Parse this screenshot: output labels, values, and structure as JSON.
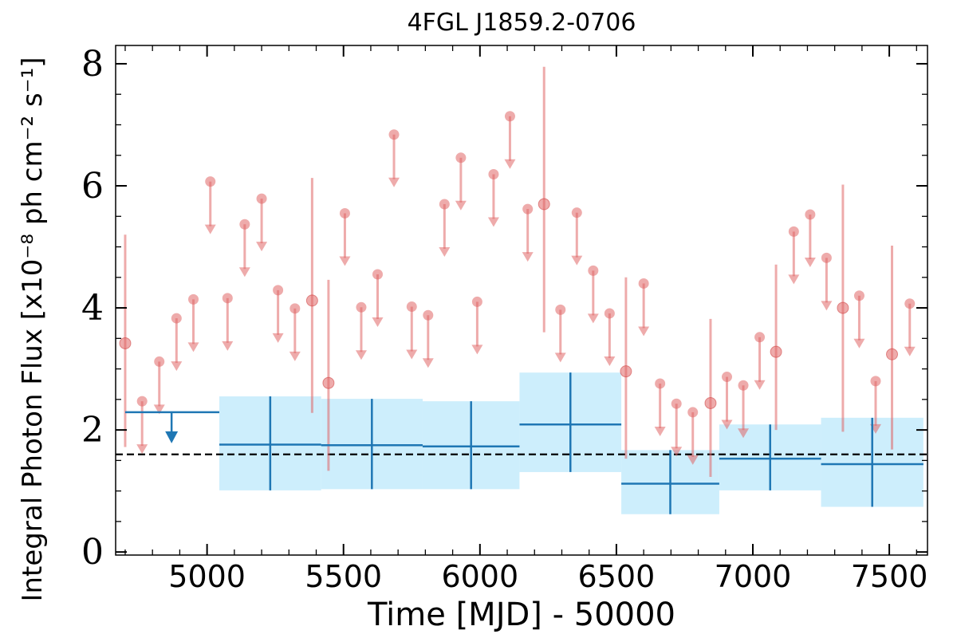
{
  "chart_data": {
    "type": "scatter",
    "title": "4FGL J1859.2-0706",
    "xlabel": "Time [MJD] - 50000",
    "ylabel": "Integral Photon Flux [x10⁻⁸ ph cm⁻² s⁻¹]",
    "xlim": [
      4665,
      7640
    ],
    "ylim": [
      -0.05,
      8.3
    ],
    "xticks": [
      5000,
      5500,
      6000,
      6500,
      7000,
      7500
    ],
    "xtick_labels": [
      "5000",
      "5500",
      "6000",
      "6500",
      "7000",
      "7500"
    ],
    "yticks": [
      0,
      2,
      4,
      6,
      8
    ],
    "ytick_labels": [
      "0",
      "2",
      "4",
      "6",
      "8"
    ],
    "grid": false,
    "reference_line": {
      "y": 1.6,
      "style": "dashed",
      "color": "#000000"
    },
    "colors": {
      "fine_bins": "#e06666",
      "coarse_bins": "#1f77b4",
      "coarse_band": "#cdeefc"
    },
    "series": [
      {
        "kind": "fine_bin_detections",
        "points": [
          {
            "x": 4700,
            "y": 3.42,
            "ylo": 1.72,
            "yhi": 5.2
          },
          {
            "x": 5385,
            "y": 4.12,
            "ylo": 2.28,
            "yhi": 6.13
          },
          {
            "x": 5445,
            "y": 2.77,
            "ylo": 1.33,
            "yhi": 4.46
          },
          {
            "x": 6235,
            "y": 5.7,
            "ylo": 3.6,
            "yhi": 7.95
          },
          {
            "x": 6535,
            "y": 2.96,
            "ylo": 1.53,
            "yhi": 4.5
          },
          {
            "x": 6845,
            "y": 2.44,
            "ylo": 1.23,
            "yhi": 3.82
          },
          {
            "x": 7085,
            "y": 3.28,
            "ylo": 2.0,
            "yhi": 4.71
          },
          {
            "x": 7330,
            "y": 4.0,
            "ylo": 1.97,
            "yhi": 6.02
          },
          {
            "x": 7510,
            "y": 3.24,
            "ylo": 1.68,
            "yhi": 5.02
          }
        ]
      },
      {
        "kind": "fine_bin_upper_limits",
        "points": [
          {
            "x": 4762,
            "y": 2.47
          },
          {
            "x": 4825,
            "y": 3.12
          },
          {
            "x": 4888,
            "y": 3.83
          },
          {
            "x": 4950,
            "y": 4.14
          },
          {
            "x": 5012,
            "y": 6.07
          },
          {
            "x": 5075,
            "y": 4.16
          },
          {
            "x": 5138,
            "y": 5.37
          },
          {
            "x": 5200,
            "y": 5.79
          },
          {
            "x": 5260,
            "y": 4.29
          },
          {
            "x": 5322,
            "y": 3.99
          },
          {
            "x": 5505,
            "y": 5.55
          },
          {
            "x": 5565,
            "y": 4.01
          },
          {
            "x": 5625,
            "y": 4.55
          },
          {
            "x": 5685,
            "y": 6.84
          },
          {
            "x": 5750,
            "y": 4.02
          },
          {
            "x": 5810,
            "y": 3.88
          },
          {
            "x": 5870,
            "y": 5.7
          },
          {
            "x": 5930,
            "y": 6.46
          },
          {
            "x": 5990,
            "y": 4.1
          },
          {
            "x": 6050,
            "y": 6.19
          },
          {
            "x": 6110,
            "y": 7.14
          },
          {
            "x": 6175,
            "y": 5.62
          },
          {
            "x": 6295,
            "y": 3.97
          },
          {
            "x": 6355,
            "y": 5.56
          },
          {
            "x": 6415,
            "y": 4.61
          },
          {
            "x": 6475,
            "y": 3.91
          },
          {
            "x": 6600,
            "y": 4.4
          },
          {
            "x": 6660,
            "y": 2.76
          },
          {
            "x": 6720,
            "y": 2.43
          },
          {
            "x": 6780,
            "y": 2.29
          },
          {
            "x": 6905,
            "y": 2.87
          },
          {
            "x": 6965,
            "y": 2.73
          },
          {
            "x": 7025,
            "y": 3.52
          },
          {
            "x": 7150,
            "y": 5.25
          },
          {
            "x": 7210,
            "y": 5.53
          },
          {
            "x": 7270,
            "y": 4.82
          },
          {
            "x": 7390,
            "y": 4.2
          },
          {
            "x": 7450,
            "y": 2.8
          },
          {
            "x": 7575,
            "y": 4.07
          }
        ]
      },
      {
        "kind": "coarse_bins",
        "upper_limits": [
          {
            "x0": 4700,
            "x1": 5045,
            "y": 2.29,
            "xarrow": 4870
          }
        ],
        "bins": [
          {
            "x0": 5045,
            "x1": 5418,
            "y": 1.76,
            "ylo": 1.01,
            "yhi": 2.55
          },
          {
            "x0": 5418,
            "x1": 5790,
            "y": 1.75,
            "ylo": 1.03,
            "yhi": 2.51
          },
          {
            "x0": 5790,
            "x1": 6145,
            "y": 1.73,
            "ylo": 1.03,
            "yhi": 2.47
          },
          {
            "x0": 6145,
            "x1": 6518,
            "y": 2.09,
            "ylo": 1.31,
            "yhi": 2.94
          },
          {
            "x0": 6518,
            "x1": 6877,
            "y": 1.12,
            "ylo": 0.62,
            "yhi": 1.67
          },
          {
            "x0": 6877,
            "x1": 7250,
            "y": 1.53,
            "ylo": 1.01,
            "yhi": 2.09
          },
          {
            "x0": 7250,
            "x1": 7625,
            "y": 1.44,
            "ylo": 0.74,
            "yhi": 2.2
          }
        ]
      }
    ]
  }
}
